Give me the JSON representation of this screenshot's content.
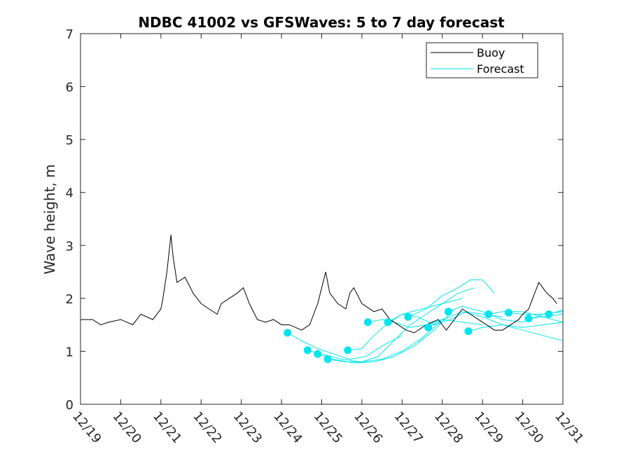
{
  "chart_data": {
    "type": "line",
    "title": "NDBC 41002 vs GFSWaves: 5 to 7 day forecast",
    "xlabel": "",
    "ylabel": "Wave height, m",
    "xlim": [
      0,
      12
    ],
    "ylim": [
      0,
      7
    ],
    "x_tick_values": [
      0,
      1,
      2,
      3,
      4,
      5,
      6,
      7,
      8,
      9,
      10,
      11,
      12
    ],
    "x_tick_labels": [
      "12/19",
      "12/20",
      "12/21",
      "12/22",
      "12/23",
      "12/24",
      "12/25",
      "12/26",
      "12/27",
      "12/28",
      "12/29",
      "12/30",
      "12/31"
    ],
    "y_tick_values": [
      0,
      1,
      2,
      3,
      4,
      5,
      6,
      7
    ],
    "y_tick_labels": [
      "0",
      "1",
      "2",
      "3",
      "4",
      "5",
      "6",
      "7"
    ],
    "x_units": "days since 12/19",
    "legend": {
      "position": "top-right",
      "entries": [
        {
          "name": "Buoy",
          "color": "#000000"
        },
        {
          "name": "Forecast",
          "color": "#00e5ee"
        }
      ]
    },
    "series": [
      {
        "name": "Buoy",
        "color": "#000000",
        "x": [
          0.0,
          0.3,
          0.5,
          0.7,
          1.0,
          1.3,
          1.5,
          1.8,
          2.0,
          2.05,
          2.15,
          2.25,
          2.3,
          2.4,
          2.6,
          2.8,
          3.0,
          3.2,
          3.4,
          3.5,
          3.7,
          3.9,
          4.05,
          4.2,
          4.4,
          4.6,
          4.8,
          5.0,
          5.2,
          5.5,
          5.7,
          5.9,
          6.0,
          6.1,
          6.2,
          6.4,
          6.6,
          6.7,
          6.8,
          7.0,
          7.3,
          7.5,
          7.7,
          7.9,
          8.1,
          8.3,
          8.6,
          8.9,
          9.1,
          9.3,
          9.5,
          9.7,
          9.9,
          10.1,
          10.3,
          10.5,
          10.7,
          10.9,
          11.0,
          11.15,
          11.25,
          11.4,
          11.5,
          11.6,
          11.75,
          11.85
        ],
        "y": [
          1.6,
          1.6,
          1.5,
          1.55,
          1.6,
          1.5,
          1.7,
          1.6,
          1.8,
          2.0,
          2.5,
          3.2,
          2.8,
          2.3,
          2.4,
          2.1,
          1.9,
          1.8,
          1.7,
          1.9,
          2.0,
          2.1,
          2.2,
          1.9,
          1.6,
          1.55,
          1.6,
          1.5,
          1.5,
          1.4,
          1.5,
          1.9,
          2.2,
          2.5,
          2.1,
          1.9,
          1.8,
          2.1,
          2.2,
          1.9,
          1.75,
          1.8,
          1.6,
          1.5,
          1.4,
          1.35,
          1.5,
          1.6,
          1.4,
          1.6,
          1.8,
          1.7,
          1.6,
          1.5,
          1.4,
          1.4,
          1.5,
          1.6,
          1.7,
          1.8,
          2.0,
          2.3,
          2.2,
          2.1,
          2.0,
          1.9
        ]
      }
    ],
    "forecasts": [
      {
        "x": [
          5.15,
          5.5,
          5.9,
          6.3,
          6.7,
          7.1,
          7.5,
          8.0
        ],
        "y": [
          1.35,
          1.2,
          1.05,
          0.95,
          0.85,
          0.9,
          1.1,
          1.3
        ]
      },
      {
        "x": [
          5.65,
          6.0,
          6.5,
          7.0,
          7.5,
          8.0,
          8.5,
          9.0
        ],
        "y": [
          1.02,
          0.95,
          0.85,
          0.8,
          0.85,
          1.0,
          1.25,
          1.6
        ]
      },
      {
        "x": [
          5.9,
          6.3,
          6.8,
          7.3,
          7.8,
          8.3,
          8.8,
          9.3
        ],
        "y": [
          0.95,
          0.85,
          0.78,
          0.8,
          0.9,
          1.1,
          1.4,
          1.8
        ]
      },
      {
        "x": [
          6.15,
          6.6,
          7.0,
          7.4,
          7.8,
          8.2,
          8.6,
          9.0,
          9.4,
          9.8
        ],
        "y": [
          0.85,
          0.8,
          0.8,
          0.9,
          1.2,
          1.5,
          1.7,
          1.9,
          2.1,
          2.2
        ]
      },
      {
        "x": [
          6.65,
          7.0,
          7.3,
          7.6,
          8.0,
          8.5,
          9.0,
          9.5
        ],
        "y": [
          1.02,
          1.05,
          1.3,
          1.5,
          1.7,
          1.8,
          1.9,
          2.0
        ]
      },
      {
        "x": [
          7.15,
          7.5,
          7.8,
          8.2,
          8.6,
          9.0,
          9.5,
          10.0
        ],
        "y": [
          1.55,
          1.6,
          1.55,
          1.45,
          1.5,
          1.6,
          1.55,
          1.5
        ]
      },
      {
        "x": [
          7.65,
          8.0,
          8.4,
          8.8,
          9.2,
          9.6,
          10.0,
          10.5
        ],
        "y": [
          1.55,
          1.7,
          1.65,
          1.5,
          1.6,
          1.75,
          1.7,
          1.65
        ]
      },
      {
        "x": [
          8.15,
          8.6,
          9.0,
          9.4,
          9.7,
          10.0,
          10.3
        ],
        "y": [
          1.65,
          1.8,
          2.05,
          2.2,
          2.35,
          2.35,
          2.1
        ]
      },
      {
        "x": [
          8.65,
          9.0,
          9.5,
          10.0,
          10.5,
          11.0,
          11.5,
          12.0
        ],
        "y": [
          1.45,
          1.6,
          1.75,
          1.65,
          1.5,
          1.4,
          1.3,
          1.2
        ]
      },
      {
        "x": [
          9.15,
          9.5,
          10.0,
          10.5,
          11.0,
          11.5,
          12.0
        ],
        "y": [
          1.75,
          1.85,
          1.75,
          1.6,
          1.55,
          1.7,
          1.75
        ]
      },
      {
        "x": [
          9.65,
          10.0,
          10.5,
          11.0,
          11.5,
          12.0
        ],
        "y": [
          1.38,
          1.45,
          1.5,
          1.45,
          1.5,
          1.55
        ]
      },
      {
        "x": [
          10.15,
          10.5,
          11.0,
          11.5,
          12.0
        ],
        "y": [
          1.7,
          1.75,
          1.75,
          1.65,
          1.55
        ]
      },
      {
        "x": [
          10.65,
          11.0,
          11.5,
          12.0
        ],
        "y": [
          1.73,
          1.7,
          1.7,
          1.75
        ]
      },
      {
        "x": [
          11.15,
          11.5,
          12.0
        ],
        "y": [
          1.62,
          1.65,
          1.7
        ]
      },
      {
        "x": [
          11.65,
          12.0
        ],
        "y": [
          1.7,
          1.78
        ]
      }
    ]
  }
}
